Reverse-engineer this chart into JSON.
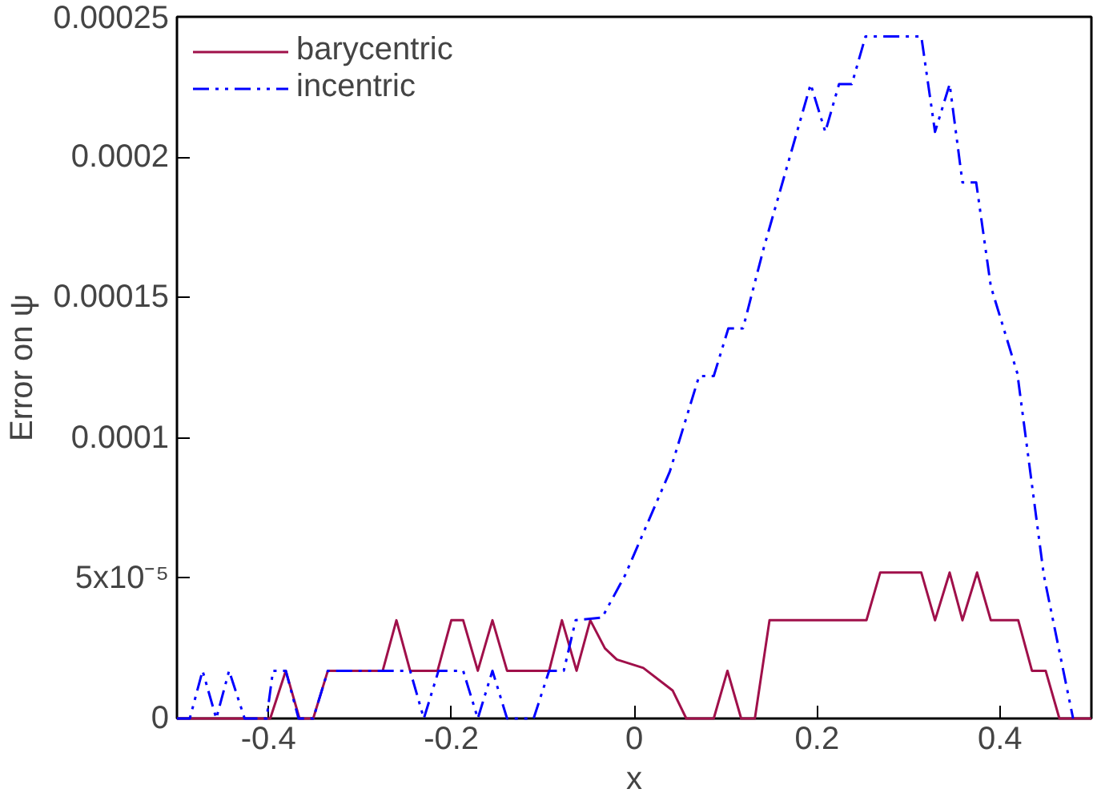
{
  "chart_data": {
    "type": "line",
    "xlabel": "x",
    "ylabel": "Error on ψ",
    "xlim": [
      -0.5,
      0.5
    ],
    "ylim": [
      0,
      0.00025
    ],
    "xticks": [
      -0.4,
      -0.2,
      0,
      0.2,
      0.4
    ],
    "yticks": [
      0,
      {
        "value": 5e-05,
        "label": "5x10⁻⁵"
      },
      {
        "value": 0.0001,
        "label": "0.0001"
      },
      {
        "value": 0.00015,
        "label": "0.00015"
      },
      {
        "value": 0.0002,
        "label": "0.0002"
      },
      {
        "value": 0.00025,
        "label": "0.00025"
      }
    ],
    "grid": false,
    "legend": "top left",
    "marker": "none",
    "series": [
      {
        "name": "barycentric",
        "color": "#a0104a",
        "line_style": "solid",
        "x": [
          -0.5,
          -0.398,
          -0.381,
          -0.366,
          -0.351,
          -0.335,
          -0.275,
          -0.26,
          -0.245,
          -0.215,
          -0.2,
          -0.187,
          -0.171,
          -0.155,
          -0.139,
          -0.093,
          -0.079,
          -0.063,
          -0.048,
          -0.032,
          -0.019,
          0.01,
          0.042,
          0.057,
          0.087,
          0.102,
          0.117,
          0.132,
          0.148,
          0.254,
          0.269,
          0.314,
          0.329,
          0.345,
          0.359,
          0.375,
          0.39,
          0.42,
          0.435,
          0.45,
          0.465,
          0.5
        ],
        "values": [
          0,
          0,
          1.7e-05,
          0,
          0,
          1.7e-05,
          1.7e-05,
          3.5e-05,
          1.7e-05,
          1.7e-05,
          3.5e-05,
          3.5e-05,
          1.7e-05,
          3.5e-05,
          1.7e-05,
          1.7e-05,
          3.5e-05,
          1.7e-05,
          3.5e-05,
          2.5e-05,
          2.1e-05,
          1.8e-05,
          1e-05,
          0,
          0,
          1.7e-05,
          0,
          0,
          3.5e-05,
          3.5e-05,
          5.2e-05,
          5.2e-05,
          3.5e-05,
          5.2e-05,
          3.5e-05,
          5.2e-05,
          3.5e-05,
          3.5e-05,
          1.7e-05,
          1.7e-05,
          0,
          0
        ]
      },
      {
        "name": "incentric",
        "color": "#0000ff",
        "line_style": "dashed",
        "x": [
          -0.5,
          -0.486,
          -0.472,
          -0.457,
          -0.443,
          -0.426,
          -0.402,
          -0.395,
          -0.381,
          -0.367,
          -0.351,
          -0.335,
          -0.245,
          -0.23,
          -0.214,
          -0.187,
          -0.171,
          -0.155,
          -0.139,
          -0.11,
          -0.093,
          -0.077,
          -0.064,
          -0.035,
          -0.01,
          0.039,
          0.071,
          0.087,
          0.103,
          0.119,
          0.142,
          0.193,
          0.209,
          0.224,
          0.238,
          0.253,
          0.314,
          0.329,
          0.345,
          0.359,
          0.374,
          0.39,
          0.419,
          0.448,
          0.48
        ],
        "values": [
          0,
          0,
          1.7e-05,
          0,
          1.7e-05,
          0,
          0,
          1.7e-05,
          1.7e-05,
          0,
          0,
          1.7e-05,
          1.7e-05,
          0,
          1.7e-05,
          1.7e-05,
          0,
          1.7e-05,
          0,
          0,
          1.7e-05,
          1.7e-05,
          3.5e-05,
          3.6e-05,
          5.1e-05,
          8.8e-05,
          0.000122,
          0.000122,
          0.000139,
          0.000139,
          0.000168,
          0.000226,
          0.000209,
          0.000226,
          0.000226,
          0.000243,
          0.000243,
          0.000209,
          0.000226,
          0.000191,
          0.000191,
          0.000154,
          0.000123,
          5.1e-05,
          0
        ]
      }
    ]
  }
}
